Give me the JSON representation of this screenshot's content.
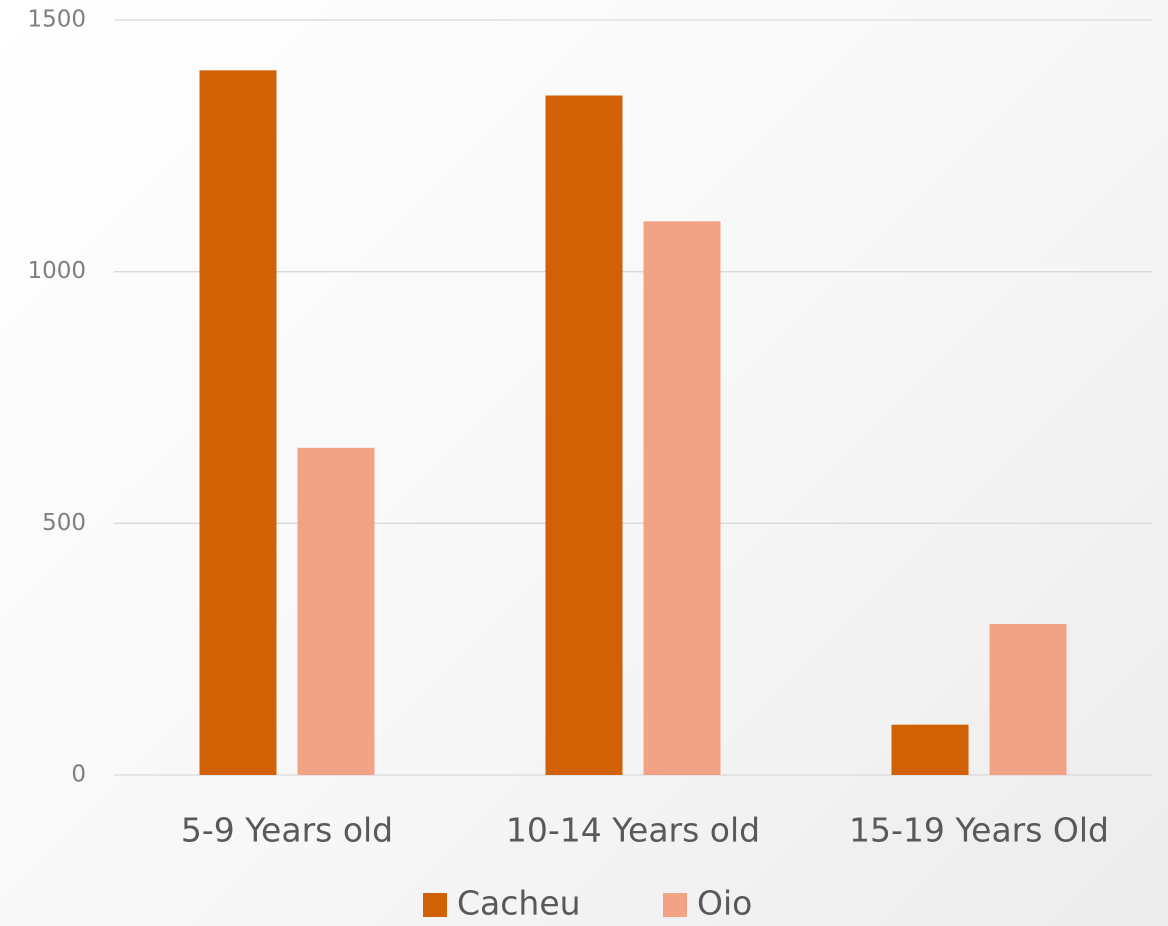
{
  "chart_data": {
    "type": "bar",
    "categories": [
      "5-9 Years old",
      "10-14 Years old",
      "15-19 Years Old"
    ],
    "series": [
      {
        "name": "Cacheu",
        "color": "#d06105",
        "values": [
          1400,
          1350,
          100
        ]
      },
      {
        "name": "Oio",
        "color": "#f2a285",
        "values": [
          650,
          1100,
          300
        ]
      }
    ],
    "ylim": [
      0,
      1500
    ],
    "yticks": [
      0,
      500,
      1000,
      1500
    ],
    "grid": true,
    "legend": "bottom"
  }
}
